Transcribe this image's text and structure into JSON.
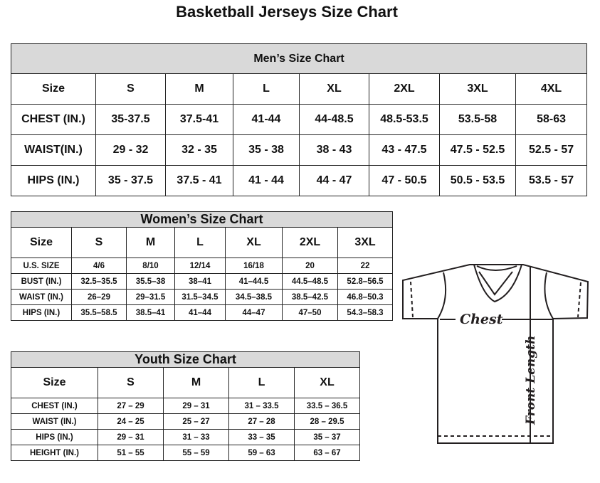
{
  "title": "Basketball Jerseys Size Chart",
  "men": {
    "title": "Men’s Size Chart",
    "header": [
      "Size",
      "S",
      "M",
      "L",
      "XL",
      "2XL",
      "3XL",
      "4XL"
    ],
    "rows": [
      [
        "CHEST (IN.)",
        "35-37.5",
        "37.5-41",
        "41-44",
        "44-48.5",
        "48.5-53.5",
        "53.5-58",
        "58-63"
      ],
      [
        "WAIST(IN.)",
        "29 - 32",
        "32 - 35",
        "35 - 38",
        "38 - 43",
        "43 - 47.5",
        "47.5 - 52.5",
        "52.5 - 57"
      ],
      [
        "HIPS (IN.)",
        "35 - 37.5",
        "37.5 - 41",
        "41 - 44",
        "44 - 47",
        "47 - 50.5",
        "50.5 - 53.5",
        "53.5 - 57"
      ]
    ]
  },
  "women": {
    "title": "Women’s Size Chart",
    "header": [
      "Size",
      "S",
      "M",
      "L",
      "XL",
      "2XL",
      "3XL"
    ],
    "rows": [
      [
        "U.S.  SIZE",
        "4/6",
        "8/10",
        "12/14",
        "16/18",
        "20",
        "22"
      ],
      [
        "BUST  (IN.)",
        "32.5–35.5",
        "35.5–38",
        "38–41",
        "41–44.5",
        "44.5–48.5",
        "52.8–56.5"
      ],
      [
        "WAIST  (IN.)",
        "26–29",
        "29–31.5",
        "31.5–34.5",
        "34.5–38.5",
        "38.5–42.5",
        "46.8–50.3"
      ],
      [
        "HIPS  (IN.)",
        "35.5–58.5",
        "38.5–41",
        "41–44",
        "44–47",
        "47–50",
        "54.3–58.3"
      ]
    ]
  },
  "youth": {
    "title": "Youth Size Chart",
    "header": [
      "Size",
      "S",
      "M",
      "L",
      "XL"
    ],
    "rows": [
      [
        "CHEST  (IN.)",
        "27  –  29",
        "29  –  31",
        "31  –  33.5",
        "33.5  –  36.5"
      ],
      [
        "WAIST  (IN.)",
        "24  –  25",
        "25  –  27",
        "27  –  28",
        "28  –  29.5"
      ],
      [
        "HIPS  (IN.)",
        "29  –  31",
        "31  –  33",
        "33  –  35",
        "35  –  37"
      ],
      [
        "HEIGHT  (IN.)",
        "51  –  55",
        "55  –  59",
        "59  –  63",
        "63  –  67"
      ]
    ]
  },
  "diagram": {
    "chest_label": "Chest",
    "length_label": "Front Length"
  }
}
